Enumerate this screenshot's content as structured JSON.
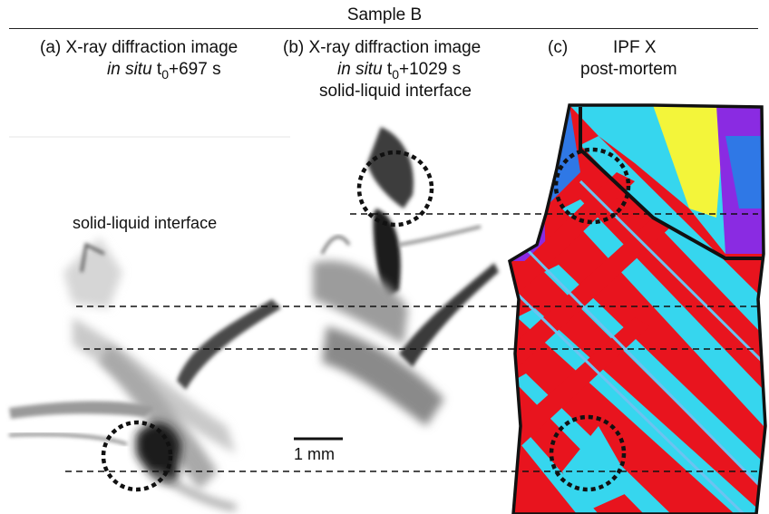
{
  "figure": {
    "header_title": "Sample B",
    "panels": [
      {
        "tag": "(a)",
        "line1": "X-ray diffraction image",
        "line2_italic": "in situ",
        "line2_rest": " t",
        "line2_sub": "0",
        "line2_tail": "+697 s",
        "interface_label": "solid-liquid interface"
      },
      {
        "tag": "(b)",
        "line1": "X-ray diffraction image",
        "line2_italic": "in situ",
        "line2_rest": " t",
        "line2_sub": "0",
        "line2_tail": "+1029 s",
        "line3": "solid-liquid interface"
      },
      {
        "tag": "(c)",
        "line1": "IPF X",
        "line2": "post-mortem"
      }
    ],
    "scale_bar_label": "1 mm",
    "colors": {
      "ipf_red": "#e8141e",
      "ipf_cyan": "#36d6ee",
      "ipf_blue": "#2f78e6",
      "ipf_lightblue": "#6cc3f0",
      "ipf_yellow": "#f3f53a",
      "ipf_purple": "#8a2be2",
      "xray_gray": "#2a2a2a"
    }
  }
}
